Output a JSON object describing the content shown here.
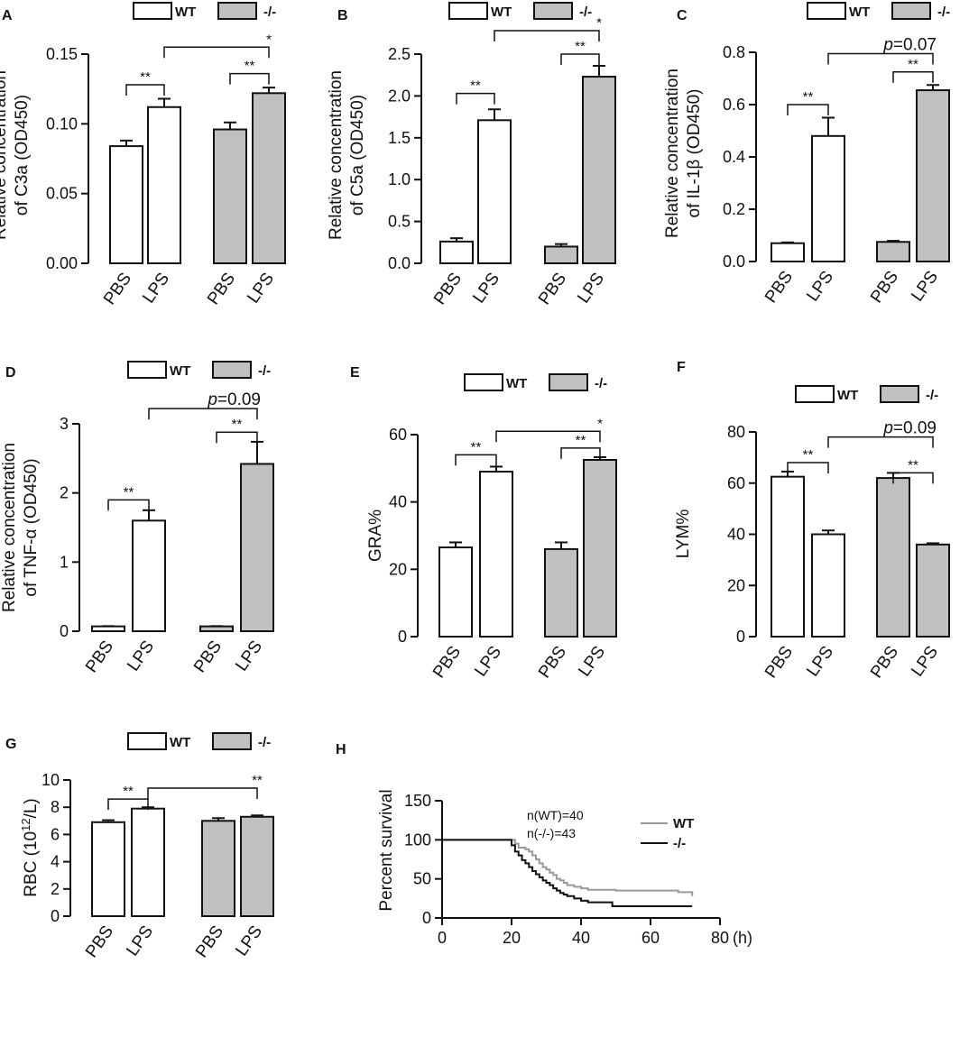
{
  "colors": {
    "wt_fill": "#ffffff",
    "ko_fill": "#c0c0c0",
    "ink": "#111111",
    "wt_line": "#999999",
    "ko_line": "#111111"
  },
  "legend": {
    "wt": "WT",
    "ko": "-/-"
  },
  "chart_data": [
    {
      "id": "A",
      "letter": "A",
      "type": "bar",
      "ylabel_lines": [
        "Relative concentration",
        "of C3a (OD450)"
      ],
      "ylim": [
        0,
        0.15
      ],
      "yticks": [
        "0.00",
        "0.05",
        "0.10",
        "0.15"
      ],
      "categories": [
        "PBS",
        "LPS",
        "PBS",
        "LPS"
      ],
      "groups": [
        "WT",
        "WT",
        "-/-",
        "-/-"
      ],
      "values": [
        0.084,
        0.112,
        0.096,
        0.122
      ],
      "errors": [
        0.004,
        0.006,
        0.005,
        0.004
      ],
      "significance": [
        {
          "from": 0,
          "to": 1,
          "label": "**",
          "level": 0.128
        },
        {
          "from": 2,
          "to": 3,
          "label": "**",
          "level": 0.136
        },
        {
          "from": 1,
          "to": 3,
          "label": "*",
          "level": 0.155
        }
      ]
    },
    {
      "id": "B",
      "letter": "B",
      "type": "bar",
      "ylabel_lines": [
        "Relative concentration",
        "of C5a (OD450)"
      ],
      "ylim": [
        0,
        2.5
      ],
      "yticks": [
        "0.0",
        "0.5",
        "1.0",
        "1.5",
        "2.0",
        "2.5"
      ],
      "categories": [
        "PBS",
        "LPS",
        "PBS",
        "LPS"
      ],
      "groups": [
        "WT",
        "WT",
        "-/-",
        "-/-"
      ],
      "values": [
        0.26,
        1.71,
        0.2,
        2.23
      ],
      "errors": [
        0.04,
        0.13,
        0.03,
        0.13
      ],
      "significance": [
        {
          "from": 0,
          "to": 1,
          "label": "**",
          "level": 2.03
        },
        {
          "from": 2,
          "to": 3,
          "label": "**",
          "level": 2.5
        },
        {
          "from": 1,
          "to": 3,
          "label": "*",
          "level": 2.78
        }
      ]
    },
    {
      "id": "C",
      "letter": "C",
      "type": "bar",
      "ylabel_lines": [
        "Relative concentration",
        "of IL-1β (OD450)"
      ],
      "ylim": [
        0,
        0.8
      ],
      "yticks": [
        "0.0",
        "0.2",
        "0.4",
        "0.6",
        "0.8"
      ],
      "categories": [
        "PBS",
        "LPS",
        "PBS",
        "LPS"
      ],
      "groups": [
        "WT",
        "WT",
        "-/-",
        "-/-"
      ],
      "values": [
        0.07,
        0.48,
        0.075,
        0.655
      ],
      "errors": [
        0.003,
        0.07,
        0.004,
        0.02
      ],
      "significance": [
        {
          "from": 0,
          "to": 1,
          "label": "**",
          "level": 0.6
        },
        {
          "from": 2,
          "to": 3,
          "label": "**",
          "level": 0.725
        },
        {
          "from": 1,
          "to": 3,
          "label": "p=0.07",
          "level": 0.795
        }
      ]
    },
    {
      "id": "D",
      "letter": "D",
      "type": "bar",
      "ylabel_lines": [
        "Relative concentration",
        "of TNF-α (OD450)"
      ],
      "ylim": [
        0,
        3
      ],
      "yticks": [
        "0",
        "1",
        "2",
        "3"
      ],
      "categories": [
        "PBS",
        "LPS",
        "PBS",
        "LPS"
      ],
      "groups": [
        "WT",
        "WT",
        "-/-",
        "-/-"
      ],
      "values": [
        0.07,
        1.6,
        0.07,
        2.42
      ],
      "errors": [
        0.004,
        0.15,
        0.004,
        0.32
      ],
      "significance": [
        {
          "from": 0,
          "to": 1,
          "label": "**",
          "level": 1.9
        },
        {
          "from": 2,
          "to": 3,
          "label": "**",
          "level": 2.88
        },
        {
          "from": 1,
          "to": 3,
          "label": "p=0.09",
          "level": 3.22
        }
      ]
    },
    {
      "id": "E",
      "letter": "E",
      "type": "bar",
      "ylabel_lines": [
        "GRA%"
      ],
      "ylim": [
        0,
        60
      ],
      "yticks": [
        "0",
        "20",
        "40",
        "60"
      ],
      "categories": [
        "PBS",
        "LPS",
        "PBS",
        "LPS"
      ],
      "groups": [
        "WT",
        "WT",
        "-/-",
        "-/-"
      ],
      "values": [
        26.5,
        49,
        26,
        52.5
      ],
      "errors": [
        1.5,
        1.5,
        2,
        0.8
      ],
      "significance": [
        {
          "from": 0,
          "to": 1,
          "label": "**",
          "level": 54
        },
        {
          "from": 2,
          "to": 3,
          "label": "**",
          "level": 56
        },
        {
          "from": 1,
          "to": 3,
          "label": "*",
          "level": 61
        }
      ]
    },
    {
      "id": "F",
      "letter": "F",
      "type": "bar",
      "ylabel_lines": [
        "LYM%"
      ],
      "ylim": [
        0,
        80
      ],
      "yticks": [
        "0",
        "20",
        "40",
        "60",
        "80"
      ],
      "categories": [
        "PBS",
        "LPS",
        "PBS",
        "LPS"
      ],
      "groups": [
        "WT",
        "WT",
        "-/-",
        "-/-"
      ],
      "values": [
        62.5,
        40,
        62,
        36
      ],
      "errors": [
        2,
        1.5,
        2,
        0.5
      ],
      "significance": [
        {
          "from": 0,
          "to": 1,
          "label": "**",
          "level": 68
        },
        {
          "from": 2,
          "to": 3,
          "label": "**",
          "level": 64
        },
        {
          "from": 1,
          "to": 3,
          "label": "p=0.09",
          "level": 78
        }
      ]
    },
    {
      "id": "G",
      "letter": "G",
      "type": "bar",
      "ylabel_lines": [
        "RBC (10^12/L)"
      ],
      "ylim": [
        0,
        10
      ],
      "yticks": [
        "0",
        "2",
        "4",
        "6",
        "8",
        "10"
      ],
      "categories": [
        "PBS",
        "LPS",
        "PBS",
        "LPS"
      ],
      "groups": [
        "WT",
        "WT",
        "-/-",
        "-/-"
      ],
      "values": [
        6.9,
        7.9,
        7.0,
        7.3
      ],
      "errors": [
        0.15,
        0.1,
        0.2,
        0.1
      ],
      "significance": [
        {
          "from": 0,
          "to": 1,
          "label": "**",
          "level": 8.6
        },
        {
          "from": 1,
          "to": 3,
          "label": "**",
          "level": 9.4
        }
      ]
    },
    {
      "id": "H",
      "letter": "H",
      "type": "line",
      "ylabel": "Percent survival",
      "xlim": [
        0,
        80
      ],
      "ylim": [
        0,
        150
      ],
      "xticks": [
        "0",
        "20",
        "40",
        "60",
        "80"
      ],
      "yticks": [
        "0",
        "50",
        "100",
        "150"
      ],
      "x_unit": "(h)",
      "annotations": [
        "n(WT)=40",
        "n(-/-)=43"
      ],
      "series": [
        {
          "name": "WT",
          "points": [
            [
              0,
              100
            ],
            [
              20,
              100
            ],
            [
              21,
              95
            ],
            [
              22,
              90
            ],
            [
              24,
              88
            ],
            [
              25,
              85
            ],
            [
              26,
              80
            ],
            [
              27,
              75
            ],
            [
              28,
              70
            ],
            [
              29,
              65
            ],
            [
              30,
              62
            ],
            [
              31,
              58
            ],
            [
              32,
              55
            ],
            [
              33,
              50
            ],
            [
              34,
              48
            ],
            [
              35,
              45
            ],
            [
              36,
              42
            ],
            [
              38,
              40
            ],
            [
              40,
              38
            ],
            [
              42,
              36
            ],
            [
              48,
              36
            ],
            [
              50,
              35
            ],
            [
              66,
              35
            ],
            [
              68,
              33
            ],
            [
              72,
              33
            ],
            [
              72,
              28
            ]
          ]
        },
        {
          "name": "-/-",
          "points": [
            [
              0,
              100
            ],
            [
              19,
              100
            ],
            [
              20,
              93
            ],
            [
              21,
              85
            ],
            [
              22,
              80
            ],
            [
              23,
              74
            ],
            [
              24,
              70
            ],
            [
              25,
              65
            ],
            [
              26,
              60
            ],
            [
              27,
              56
            ],
            [
              28,
              52
            ],
            [
              29,
              48
            ],
            [
              30,
              45
            ],
            [
              31,
              42
            ],
            [
              32,
              38
            ],
            [
              33,
              35
            ],
            [
              34,
              32
            ],
            [
              35,
              30
            ],
            [
              36,
              28
            ],
            [
              38,
              25
            ],
            [
              40,
              22
            ],
            [
              42,
              20
            ],
            [
              48,
              20
            ],
            [
              49,
              15
            ],
            [
              72,
              15
            ]
          ]
        }
      ]
    }
  ]
}
